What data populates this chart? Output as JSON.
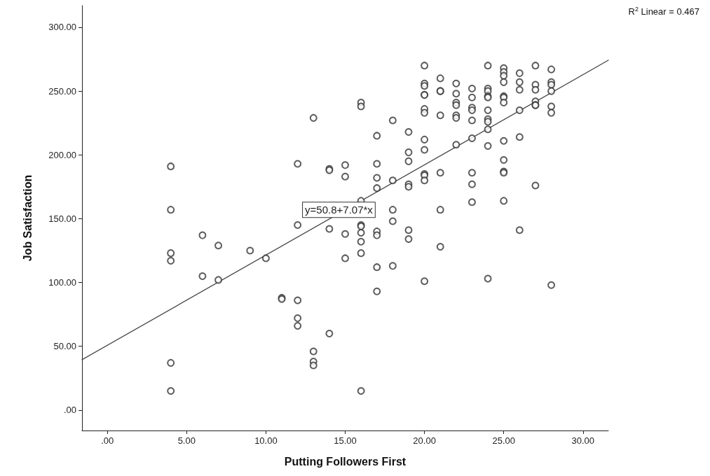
{
  "chart_data": {
    "type": "scatter",
    "xlabel": "Putting Followers First",
    "ylabel": "Job Satisfaction",
    "xlim": [
      -1.6,
      31.6
    ],
    "ylim": [
      -16,
      317
    ],
    "xticks": [
      {
        "value": 0,
        "label": ".00"
      },
      {
        "value": 5,
        "label": "5.00"
      },
      {
        "value": 10,
        "label": "10.00"
      },
      {
        "value": 15,
        "label": "15.00"
      },
      {
        "value": 20,
        "label": "20.00"
      },
      {
        "value": 25,
        "label": "25.00"
      },
      {
        "value": 30,
        "label": "30.00"
      }
    ],
    "yticks": [
      {
        "value": 0,
        "label": ".00"
      },
      {
        "value": 50,
        "label": "50.00"
      },
      {
        "value": 100,
        "label": "100.00"
      },
      {
        "value": 150,
        "label": "150.00"
      },
      {
        "value": 200,
        "label": "200.00"
      },
      {
        "value": 250,
        "label": "250.00"
      },
      {
        "value": 300,
        "label": "300.00"
      }
    ],
    "grid": false,
    "marker": "circle",
    "annotations": [
      {
        "text": "y=50.8+7.07*x",
        "x": 14.6,
        "y": 157
      },
      "R$^{2}$ Linear = 0.467"
    ],
    "series": [
      {
        "color": "#333333",
        "x": [
          4,
          4,
          4,
          4,
          4,
          4,
          6,
          6,
          7,
          7,
          9,
          10,
          11,
          11,
          12,
          12,
          12,
          12,
          12,
          13,
          13,
          13,
          13,
          14,
          14,
          14,
          14,
          15,
          15,
          15,
          15,
          16,
          16,
          16,
          16,
          16,
          16,
          16,
          16,
          16,
          17,
          17,
          17,
          17,
          17,
          17,
          17,
          17,
          18,
          18,
          18,
          18,
          18,
          19,
          19,
          19,
          19,
          19,
          19,
          19,
          20,
          20,
          20,
          20,
          20,
          20,
          20,
          20,
          20,
          20,
          20,
          20,
          20,
          21,
          21,
          21,
          21,
          21,
          21,
          21,
          22,
          22,
          22,
          22,
          22,
          22,
          22,
          23,
          23,
          23,
          23,
          23,
          23,
          23,
          23,
          23,
          24,
          24,
          24,
          24,
          24,
          24,
          24,
          24,
          24,
          24,
          24,
          25,
          25,
          25,
          25,
          25,
          25,
          25,
          25,
          25,
          25,
          25,
          25,
          26,
          26,
          26,
          26,
          26,
          26,
          27,
          27,
          27,
          27,
          27,
          27,
          27,
          28,
          28,
          28,
          28,
          28,
          28,
          28
        ],
        "values": [
          191,
          157,
          123,
          117,
          37,
          15,
          137,
          105,
          129,
          102,
          125,
          119,
          88,
          87,
          193,
          145,
          86,
          72,
          66,
          229,
          46,
          38,
          35,
          189,
          188,
          142,
          60,
          192,
          183,
          138,
          119,
          241,
          238,
          164,
          145,
          144,
          139,
          132,
          123,
          15,
          215,
          193,
          182,
          174,
          140,
          137,
          112,
          93,
          227,
          180,
          157,
          148,
          113,
          218,
          202,
          195,
          177,
          175,
          141,
          134,
          270,
          256,
          254,
          247,
          247,
          236,
          233,
          212,
          204,
          185,
          184,
          180,
          101,
          260,
          250,
          250,
          231,
          186,
          157,
          128,
          256,
          248,
          241,
          239,
          231,
          229,
          208,
          252,
          245,
          237,
          235,
          227,
          213,
          186,
          177,
          163,
          270,
          252,
          250,
          246,
          245,
          235,
          228,
          226,
          220,
          207,
          103,
          268,
          265,
          262,
          257,
          246,
          245,
          241,
          211,
          196,
          187,
          186,
          164,
          264,
          257,
          251,
          235,
          214,
          141,
          270,
          255,
          251,
          242,
          239,
          239,
          176,
          267,
          257,
          255,
          250,
          238,
          233,
          98
        ]
      },
      {
        "type": "line",
        "color": "#444444",
        "marker": "none",
        "x": [
          -1.6,
          31.6
        ],
        "values": [
          39.5,
          274.2
        ]
      }
    ]
  }
}
